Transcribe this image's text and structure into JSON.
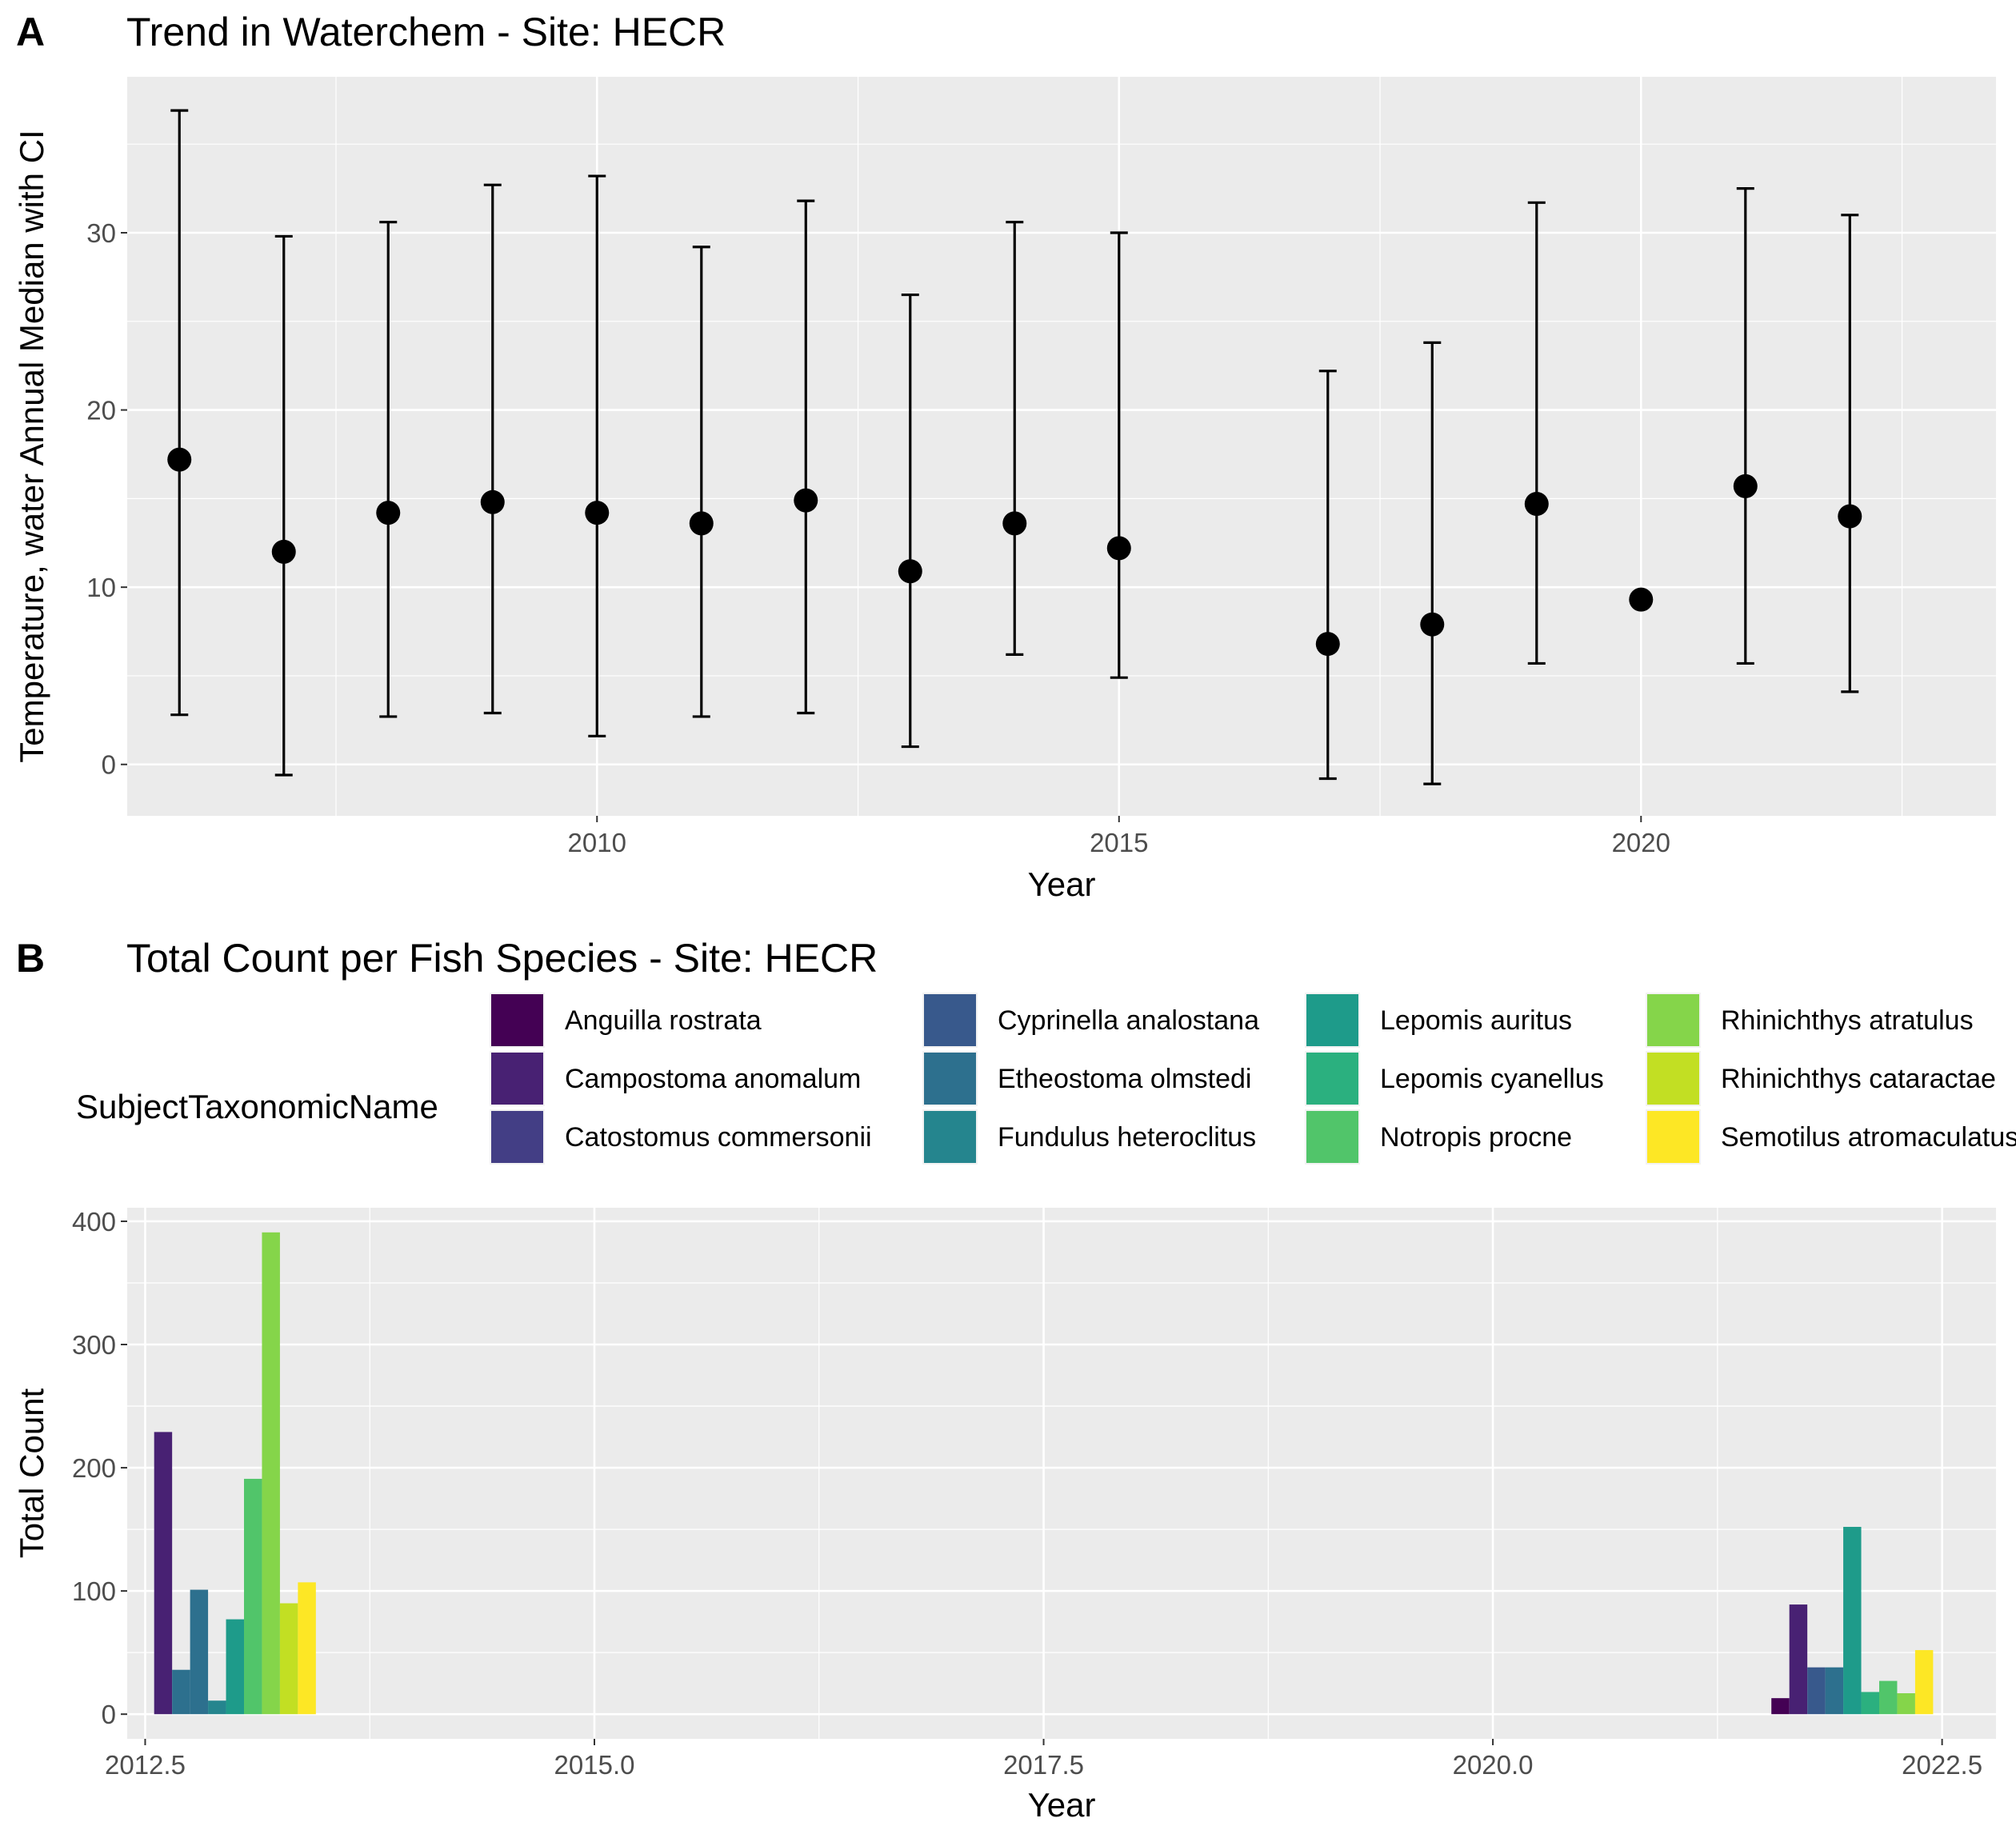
{
  "chart_data": [
    {
      "panel_tag": "A",
      "type": "scatter",
      "title": "Trend in Waterchem - Site: HECR",
      "xlabel": "Year",
      "ylabel": "Temperature, water Annual Median with CI",
      "xlim": [
        2005.5,
        2023.4
      ],
      "ylim": [
        -2.9,
        38.8
      ],
      "x_ticks": [
        2010,
        2015,
        2020
      ],
      "y_ticks": [
        0,
        10,
        20,
        30
      ],
      "grid": true,
      "points": [
        {
          "x": 2006,
          "y": 17.2,
          "lo": 2.8,
          "hi": 36.9
        },
        {
          "x": 2007,
          "y": 12.0,
          "lo": -0.6,
          "hi": 29.8
        },
        {
          "x": 2008,
          "y": 14.2,
          "lo": 2.7,
          "hi": 30.6
        },
        {
          "x": 2009,
          "y": 14.8,
          "lo": 2.9,
          "hi": 32.7
        },
        {
          "x": 2010,
          "y": 14.2,
          "lo": 1.6,
          "hi": 33.2
        },
        {
          "x": 2011,
          "y": 13.6,
          "lo": 2.7,
          "hi": 29.2
        },
        {
          "x": 2012,
          "y": 14.9,
          "lo": 2.9,
          "hi": 31.8
        },
        {
          "x": 2013,
          "y": 10.9,
          "lo": 1.0,
          "hi": 26.5
        },
        {
          "x": 2014,
          "y": 13.6,
          "lo": 6.2,
          "hi": 30.6
        },
        {
          "x": 2015,
          "y": 12.2,
          "lo": 4.9,
          "hi": 30.0
        },
        {
          "x": 2017,
          "y": 6.8,
          "lo": -0.8,
          "hi": 22.2
        },
        {
          "x": 2018,
          "y": 7.9,
          "lo": -1.1,
          "hi": 23.8
        },
        {
          "x": 2019,
          "y": 14.7,
          "lo": 5.7,
          "hi": 31.7
        },
        {
          "x": 2020,
          "y": 9.3,
          "lo": null,
          "hi": null
        },
        {
          "x": 2021,
          "y": 15.7,
          "lo": 5.7,
          "hi": 32.5
        },
        {
          "x": 2022,
          "y": 14.0,
          "lo": 4.1,
          "hi": 31.0
        }
      ]
    },
    {
      "panel_tag": "B",
      "type": "bar",
      "title": "Total Count per Fish Species - Site: HECR",
      "xlabel": "Year",
      "ylabel": "Total Count",
      "xlim": [
        2012.4,
        2022.8
      ],
      "ylim": [
        -20,
        411
      ],
      "x_ticks": [
        "2012.5",
        "2015.0",
        "2017.5",
        "2020.0",
        "2022.5"
      ],
      "y_ticks": [
        0,
        100,
        200,
        300,
        400
      ],
      "grid": true,
      "legend_position": "top",
      "legend_title": "SubjectTaxonomicName",
      "series": [
        {
          "name": "Anguilla rostrata",
          "color": "#440154"
        },
        {
          "name": "Campostoma anomalum",
          "color": "#482173"
        },
        {
          "name": "Catostomus commersonii",
          "color": "#433E85"
        },
        {
          "name": "Cyprinella analostana",
          "color": "#38598C"
        },
        {
          "name": "Etheostoma olmstedi",
          "color": "#2D708E"
        },
        {
          "name": "Fundulus heteroclitus",
          "color": "#25858E"
        },
        {
          "name": "Lepomis auritus",
          "color": "#1E9B8A"
        },
        {
          "name": "Lepomis cyanellus",
          "color": "#2BB07F"
        },
        {
          "name": "Notropis procne",
          "color": "#51C56A"
        },
        {
          "name": "Rhinichthys atratulus",
          "color": "#85D54A"
        },
        {
          "name": "Rhinichthys cataractae",
          "color": "#C2DF23"
        },
        {
          "name": "Semotilus atromaculatus",
          "color": "#FDE725"
        }
      ],
      "bars": [
        {
          "year": 2013,
          "series_index": 1,
          "value": 229
        },
        {
          "year": 2013,
          "series_index": 4,
          "value": 36
        },
        {
          "year": 2013,
          "series_index": 4,
          "value": 101
        },
        {
          "year": 2013,
          "series_index": 5,
          "value": 11
        },
        {
          "year": 2013,
          "series_index": 6,
          "value": 77
        },
        {
          "year": 2013,
          "series_index": 8,
          "value": 191
        },
        {
          "year": 2013,
          "series_index": 9,
          "value": 391
        },
        {
          "year": 2013,
          "series_index": 10,
          "value": 90
        },
        {
          "year": 2013,
          "series_index": 11,
          "value": 107
        },
        {
          "year": 2022,
          "series_index": 0,
          "value": 13
        },
        {
          "year": 2022,
          "series_index": 1,
          "value": 89
        },
        {
          "year": 2022,
          "series_index": 3,
          "value": 38
        },
        {
          "year": 2022,
          "series_index": 4,
          "value": 38
        },
        {
          "year": 2022,
          "series_index": 6,
          "value": 152
        },
        {
          "year": 2022,
          "series_index": 7,
          "value": 18
        },
        {
          "year": 2022,
          "series_index": 8,
          "value": 27
        },
        {
          "year": 2022,
          "series_index": 9,
          "value": 17
        },
        {
          "year": 2022,
          "series_index": 11,
          "value": 52
        }
      ]
    }
  ]
}
